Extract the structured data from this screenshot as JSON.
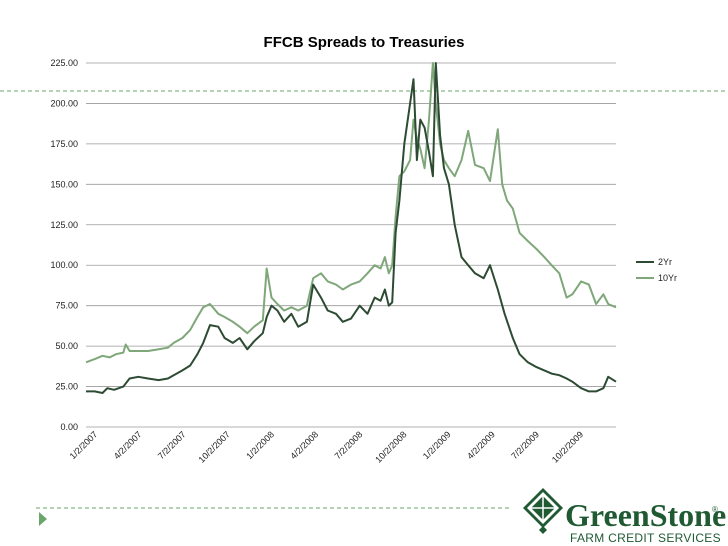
{
  "colors": {
    "series_2yr": "#2d4b33",
    "series_10yr": "#7fa77a",
    "gridline": "#9a9a9a",
    "dashed_rule": "#6aa66a",
    "brand_green": "#1f5a33",
    "nav_arrow": "#6aa66a"
  },
  "chart_data": {
    "type": "line",
    "title": "FFCB Spreads to Treasuries",
    "xlabel": "",
    "ylabel": "",
    "ylim": [
      0,
      225
    ],
    "y_ticks": [
      "0.00",
      "25.00",
      "50.00",
      "75.00",
      "100.00",
      "125.00",
      "150.00",
      "175.00",
      "200.00",
      "225.00"
    ],
    "x_tick_labels": [
      "1/2/2007",
      "4/2/2007",
      "7/2/2007",
      "10/2/2007",
      "1/2/2008",
      "4/2/2008",
      "7/2/2008",
      "10/2/2008",
      "1/2/2009",
      "4/2/2009",
      "7/2/2009",
      "10/2/2009"
    ],
    "x_range": [
      "2007-01-02",
      "2009-12-31"
    ],
    "grid": true,
    "legend_position": "right",
    "series": [
      {
        "name": "2Yr",
        "color": "#2d4b33",
        "points": [
          [
            "2007-01-02",
            22
          ],
          [
            "2007-01-20",
            22
          ],
          [
            "2007-02-05",
            21
          ],
          [
            "2007-02-15",
            24
          ],
          [
            "2007-03-01",
            23
          ],
          [
            "2007-03-20",
            25
          ],
          [
            "2007-04-02",
            30
          ],
          [
            "2007-04-20",
            31
          ],
          [
            "2007-05-10",
            30
          ],
          [
            "2007-06-01",
            29
          ],
          [
            "2007-06-20",
            30
          ],
          [
            "2007-07-02",
            32
          ],
          [
            "2007-07-20",
            35
          ],
          [
            "2007-08-05",
            38
          ],
          [
            "2007-08-20",
            45
          ],
          [
            "2007-09-01",
            52
          ],
          [
            "2007-09-15",
            63
          ],
          [
            "2007-10-02",
            62
          ],
          [
            "2007-10-15",
            55
          ],
          [
            "2007-11-01",
            52
          ],
          [
            "2007-11-15",
            55
          ],
          [
            "2007-12-01",
            48
          ],
          [
            "2007-12-15",
            53
          ],
          [
            "2008-01-02",
            58
          ],
          [
            "2008-01-10",
            68
          ],
          [
            "2008-01-20",
            75
          ],
          [
            "2008-02-01",
            72
          ],
          [
            "2008-02-15",
            65
          ],
          [
            "2008-03-01",
            70
          ],
          [
            "2008-03-15",
            62
          ],
          [
            "2008-04-02",
            65
          ],
          [
            "2008-04-15",
            88
          ],
          [
            "2008-05-01",
            80
          ],
          [
            "2008-05-15",
            72
          ],
          [
            "2008-06-01",
            70
          ],
          [
            "2008-06-15",
            65
          ],
          [
            "2008-07-02",
            67
          ],
          [
            "2008-07-20",
            75
          ],
          [
            "2008-08-05",
            70
          ],
          [
            "2008-08-20",
            80
          ],
          [
            "2008-09-01",
            78
          ],
          [
            "2008-09-10",
            85
          ],
          [
            "2008-09-18",
            75
          ],
          [
            "2008-09-25",
            77
          ],
          [
            "2008-10-02",
            120
          ],
          [
            "2008-10-10",
            140
          ],
          [
            "2008-10-20",
            175
          ],
          [
            "2008-11-01",
            200
          ],
          [
            "2008-11-08",
            215
          ],
          [
            "2008-11-15",
            165
          ],
          [
            "2008-11-22",
            190
          ],
          [
            "2008-12-01",
            185
          ],
          [
            "2008-12-10",
            170
          ],
          [
            "2008-12-18",
            155
          ],
          [
            "2008-12-24",
            225
          ],
          [
            "2009-01-02",
            180
          ],
          [
            "2009-01-10",
            160
          ],
          [
            "2009-01-20",
            150
          ],
          [
            "2009-02-01",
            125
          ],
          [
            "2009-02-15",
            105
          ],
          [
            "2009-03-01",
            100
          ],
          [
            "2009-03-15",
            95
          ],
          [
            "2009-04-02",
            92
          ],
          [
            "2009-04-15",
            100
          ],
          [
            "2009-05-01",
            85
          ],
          [
            "2009-05-15",
            70
          ],
          [
            "2009-06-01",
            55
          ],
          [
            "2009-06-15",
            45
          ],
          [
            "2009-07-02",
            40
          ],
          [
            "2009-07-20",
            37
          ],
          [
            "2009-08-05",
            35
          ],
          [
            "2009-08-20",
            33
          ],
          [
            "2009-09-05",
            32
          ],
          [
            "2009-09-20",
            30
          ],
          [
            "2009-10-02",
            28
          ],
          [
            "2009-10-20",
            24
          ],
          [
            "2009-11-05",
            22
          ],
          [
            "2009-11-20",
            22
          ],
          [
            "2009-12-05",
            24
          ],
          [
            "2009-12-15",
            31
          ],
          [
            "2009-12-31",
            28
          ]
        ]
      },
      {
        "name": "10Yr",
        "color": "#7fa77a",
        "points": [
          [
            "2007-01-02",
            40
          ],
          [
            "2007-01-20",
            42
          ],
          [
            "2007-02-05",
            44
          ],
          [
            "2007-02-20",
            43
          ],
          [
            "2007-03-05",
            45
          ],
          [
            "2007-03-20",
            46
          ],
          [
            "2007-03-25",
            51
          ],
          [
            "2007-04-02",
            47
          ],
          [
            "2007-04-20",
            47
          ],
          [
            "2007-05-10",
            47
          ],
          [
            "2007-06-01",
            48
          ],
          [
            "2007-06-20",
            49
          ],
          [
            "2007-07-02",
            52
          ],
          [
            "2007-07-20",
            55
          ],
          [
            "2007-08-05",
            60
          ],
          [
            "2007-08-20",
            68
          ],
          [
            "2007-09-01",
            74
          ],
          [
            "2007-09-15",
            76
          ],
          [
            "2007-10-02",
            70
          ],
          [
            "2007-10-15",
            68
          ],
          [
            "2007-11-01",
            65
          ],
          [
            "2007-11-15",
            62
          ],
          [
            "2007-12-01",
            58
          ],
          [
            "2007-12-15",
            62
          ],
          [
            "2008-01-02",
            66
          ],
          [
            "2008-01-10",
            98
          ],
          [
            "2008-01-20",
            80
          ],
          [
            "2008-02-01",
            76
          ],
          [
            "2008-02-15",
            72
          ],
          [
            "2008-03-01",
            74
          ],
          [
            "2008-03-15",
            72
          ],
          [
            "2008-04-02",
            75
          ],
          [
            "2008-04-15",
            92
          ],
          [
            "2008-05-01",
            95
          ],
          [
            "2008-05-15",
            90
          ],
          [
            "2008-06-01",
            88
          ],
          [
            "2008-06-15",
            85
          ],
          [
            "2008-07-02",
            88
          ],
          [
            "2008-07-20",
            90
          ],
          [
            "2008-08-05",
            95
          ],
          [
            "2008-08-20",
            100
          ],
          [
            "2008-09-01",
            98
          ],
          [
            "2008-09-10",
            105
          ],
          [
            "2008-09-18",
            95
          ],
          [
            "2008-09-25",
            100
          ],
          [
            "2008-10-02",
            130
          ],
          [
            "2008-10-10",
            155
          ],
          [
            "2008-10-20",
            158
          ],
          [
            "2008-11-01",
            165
          ],
          [
            "2008-11-08",
            190
          ],
          [
            "2008-11-15",
            178
          ],
          [
            "2008-11-22",
            172
          ],
          [
            "2008-12-01",
            160
          ],
          [
            "2008-12-10",
            190
          ],
          [
            "2008-12-18",
            225
          ],
          [
            "2008-12-24",
            200
          ],
          [
            "2009-01-02",
            175
          ],
          [
            "2009-01-10",
            165
          ],
          [
            "2009-01-20",
            160
          ],
          [
            "2009-02-01",
            155
          ],
          [
            "2009-02-15",
            165
          ],
          [
            "2009-03-01",
            183
          ],
          [
            "2009-03-15",
            162
          ],
          [
            "2009-04-02",
            160
          ],
          [
            "2009-04-15",
            152
          ],
          [
            "2009-05-01",
            184
          ],
          [
            "2009-05-10",
            150
          ],
          [
            "2009-05-20",
            140
          ],
          [
            "2009-06-01",
            135
          ],
          [
            "2009-06-15",
            120
          ],
          [
            "2009-07-02",
            115
          ],
          [
            "2009-07-20",
            110
          ],
          [
            "2009-08-05",
            105
          ],
          [
            "2009-08-20",
            100
          ],
          [
            "2009-09-05",
            95
          ],
          [
            "2009-09-20",
            80
          ],
          [
            "2009-10-02",
            82
          ],
          [
            "2009-10-20",
            90
          ],
          [
            "2009-11-05",
            88
          ],
          [
            "2009-11-20",
            76
          ],
          [
            "2009-12-05",
            82
          ],
          [
            "2009-12-15",
            76
          ],
          [
            "2009-12-31",
            74
          ]
        ]
      }
    ]
  },
  "logo": {
    "name_part1": "Green",
    "name_part2": "Stone",
    "registered_mark": "®",
    "tagline": "FARM CREDIT SERVICES"
  },
  "nav": {
    "icon": "play-arrow-icon"
  }
}
